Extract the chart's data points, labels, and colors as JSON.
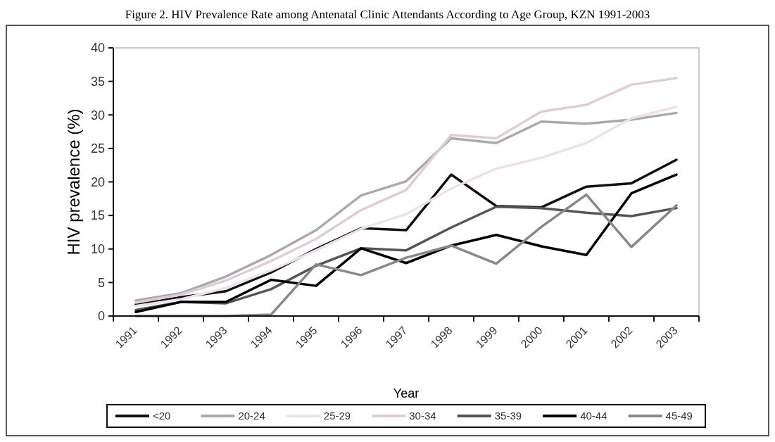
{
  "chart_data": {
    "type": "line",
    "title": "Figure 2. HIV Prevalence Rate among Antenatal Clinic Attendants According to Age Group, KZN 1991-2003",
    "xlabel": "Year",
    "ylabel": "HIV prevalence (%)",
    "categories": [
      "1991",
      "1992",
      "1993",
      "1994",
      "1995",
      "1996",
      "1997",
      "1998",
      "1999",
      "2000",
      "2001",
      "2002",
      "2003"
    ],
    "ylim": [
      0,
      40
    ],
    "yticks": [
      0,
      5,
      10,
      15,
      20,
      25,
      30,
      35,
      40
    ],
    "grid": false,
    "legend": "bottom",
    "marker": "none",
    "line_style": "solid",
    "series": [
      {
        "name": "<20",
        "color": "#111111",
        "values": [
          1.7,
          2.8,
          3.7,
          6.5,
          10,
          13.1,
          12.8,
          21.1,
          16.4,
          16.2,
          19.3,
          19.8,
          23.3
        ]
      },
      {
        "name": "20-24",
        "color": "#aaaaaa",
        "values": [
          2.3,
          3.4,
          5.9,
          9.1,
          12.8,
          18,
          20.1,
          26.5,
          25.8,
          29,
          28.7,
          29.3,
          30.3
        ]
      },
      {
        "name": "25-29",
        "color": "#eee2ea",
        "values": [
          1.5,
          2.5,
          4.2,
          6.8,
          9.8,
          13,
          15.2,
          19,
          22,
          23.6,
          25.8,
          29.5,
          31.2
        ]
      },
      {
        "name": "30-34",
        "color": "#e0ccd8",
        "values": [
          2,
          3.2,
          5.3,
          8.2,
          11.5,
          15.8,
          18.8,
          27,
          26.5,
          30.5,
          31.5,
          34.5,
          35.5
        ]
      },
      {
        "name": "35-39",
        "color": "#555555",
        "values": [
          0.9,
          2.1,
          1.9,
          4,
          7.5,
          10.1,
          9.8,
          13.2,
          16.3,
          16.1,
          15.4,
          14.9,
          16.1
        ]
      },
      {
        "name": "40-44",
        "color": "#000000",
        "values": [
          0.6,
          2.1,
          2.1,
          5.4,
          4.5,
          10.1,
          7.9,
          10.5,
          12.1,
          10.4,
          9.1,
          18.3,
          21.1
        ]
      },
      {
        "name": "45-49",
        "color": "#888888",
        "values": [
          0,
          0,
          0,
          0.2,
          7.7,
          6.1,
          8.7,
          10.5,
          7.8,
          13.3,
          18.1,
          10.3,
          16.5
        ]
      }
    ]
  }
}
